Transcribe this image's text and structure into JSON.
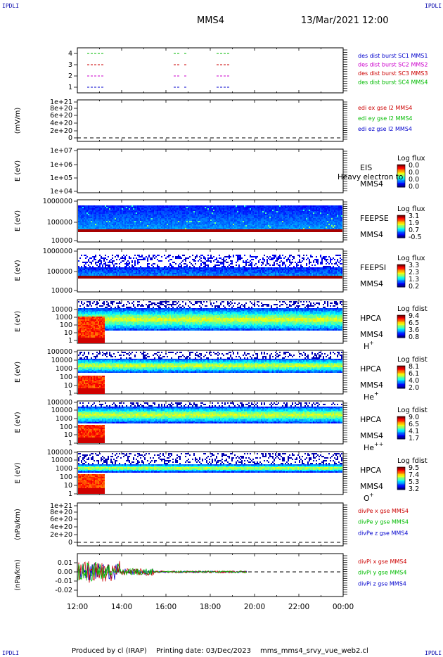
{
  "corners": {
    "tl": "IPDLI",
    "tr": "IPDLI",
    "bl": "IPDLI",
    "br": "IPDLI"
  },
  "header": {
    "spacecraft": "MMS4",
    "datetime": "13/Mar/2021 12:00"
  },
  "footer": {
    "producer": "Produced by cl (IRAP)",
    "printing": "Printing date: 03/Dec/2023",
    "file": "mms_mms4_srvy_vue_web2.cl"
  },
  "overlay_text": "Heavy electron to",
  "colors": {
    "mms1": "#0000cc",
    "mms2": "#cc00cc",
    "mms3": "#cc0000",
    "mms4": "#00bb00",
    "dash": "#000000"
  },
  "chart_data": [
    {
      "type": "line",
      "id": "burst",
      "yticks": [
        "1",
        "2",
        "3",
        "4"
      ],
      "ylim": [
        0.5,
        4.5
      ],
      "legend": [
        "des dist burst SC1 MMS1",
        "des dist burst SC2 MMS2",
        "des dist burst SC3 MMS3",
        "des dist burst SC4 MMS4"
      ]
    },
    {
      "type": "line",
      "id": "edi",
      "ylabel": "(mV/m)",
      "yticks": [
        "0",
        "2e+20",
        "4e+20",
        "6e+20",
        "8e+20",
        "1e+21"
      ],
      "legend": [
        "edi ex gse l2 MMS4",
        "edi ey gse l2 MMS4",
        "edi ez gse l2 MMS4"
      ]
    },
    {
      "type": "heatmap",
      "id": "eis",
      "ylabel": "E (eV)",
      "yticks": [
        "1e+04",
        "1e+05",
        "1e+06",
        "1e+07"
      ],
      "instrument": "EIS",
      "sc": "MMS4",
      "cbar_title": "Log flux",
      "cbar_values": [
        "0.0",
        "0.0",
        "0.0",
        "0.0"
      ]
    },
    {
      "type": "heatmap",
      "id": "feepse",
      "ylabel": "E (eV)",
      "yticks": [
        "10000",
        "100000",
        "1000000"
      ],
      "instrument": "FEEPSE",
      "sc": "MMS4",
      "cbar_title": "Log flux",
      "cbar_values": [
        "3.1",
        "1.9",
        "0.7",
        "-0.5"
      ]
    },
    {
      "type": "heatmap",
      "id": "feepsi",
      "ylabel": "E (eV)",
      "yticks": [
        "10000",
        "100000",
        "1000000"
      ],
      "instrument": "FEEPSI",
      "sc": "MMS4",
      "cbar_title": "Log flux",
      "cbar_values": [
        "3.3",
        "2.3",
        "1.3",
        "0.2"
      ]
    },
    {
      "type": "heatmap",
      "id": "hpca_h",
      "ylabel": "E (eV)",
      "yticks": [
        "1",
        "10",
        "100",
        "1000",
        "10000"
      ],
      "instrument": "HPCA",
      "sc": "MMS4",
      "species": "H",
      "charge": "+",
      "cbar_title": "Log fdist",
      "cbar_values": [
        "9.4",
        "6.5",
        "3.6",
        "0.8"
      ]
    },
    {
      "type": "heatmap",
      "id": "hpca_he",
      "ylabel": "E (eV)",
      "yticks": [
        "1",
        "10",
        "100",
        "1000",
        "10000",
        "100000"
      ],
      "instrument": "HPCA",
      "sc": "MMS4",
      "species": "He",
      "charge": "+",
      "cbar_title": "Log fdist",
      "cbar_values": [
        "8.1",
        "6.1",
        "4.0",
        "2.0"
      ]
    },
    {
      "type": "heatmap",
      "id": "hpca_hepp",
      "ylabel": "E (eV)",
      "yticks": [
        "1",
        "10",
        "100",
        "1000",
        "10000",
        "100000"
      ],
      "instrument": "HPCA",
      "sc": "MMS4",
      "species": "He",
      "charge": "++",
      "cbar_title": "Log fdist",
      "cbar_values": [
        "9.0",
        "6.5",
        "4.1",
        "1.7"
      ]
    },
    {
      "type": "heatmap",
      "id": "hpca_o",
      "ylabel": "E (eV)",
      "yticks": [
        "1",
        "10",
        "100",
        "1000",
        "10000",
        "100000"
      ],
      "instrument": "HPCA",
      "sc": "MMS4",
      "species": "O",
      "charge": "+",
      "cbar_title": "Log fdist",
      "cbar_values": [
        "9.5",
        "7.4",
        "5.3",
        "3.2"
      ]
    },
    {
      "type": "line",
      "id": "divpe",
      "ylabel": "(nPa/km)",
      "yticks": [
        "0",
        "2e+20",
        "4e+20",
        "6e+20",
        "8e+20",
        "1e+21"
      ],
      "legend": [
        "divPe x gse MMS4",
        "divPe y gse MMS4",
        "divPe z gse MMS4"
      ]
    },
    {
      "type": "line",
      "id": "divpi",
      "ylabel": "(nPa/km)",
      "yticks": [
        "-0.02",
        "-0.01",
        "0.00",
        "0.01"
      ],
      "ylim": [
        -0.023,
        0.015
      ],
      "legend": [
        "divPi x gse MMS4",
        "divPi y gse MMS4",
        "divPi z gse MMS4"
      ]
    }
  ],
  "xaxis": {
    "ticks": [
      "12:00",
      "14:00",
      "16:00",
      "18:00",
      "20:00",
      "22:00",
      "00:00"
    ]
  }
}
